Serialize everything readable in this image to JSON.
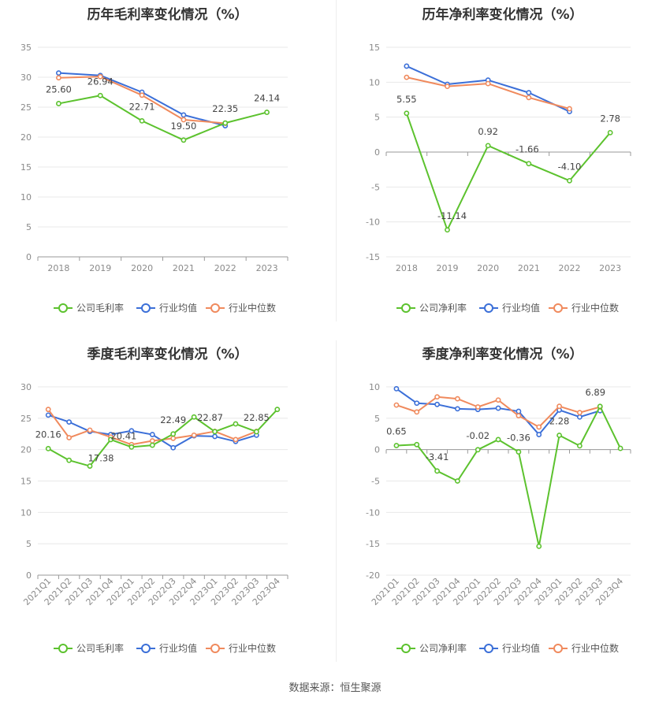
{
  "colors": {
    "company": "#5cc22e",
    "industry_avg": "#3b6fd8",
    "industry_median": "#f08a5d"
  },
  "source_text": "数据来源：恒生聚源",
  "chart_data": [
    {
      "type": "line",
      "title": "历年毛利率变化情况（%）",
      "x": [
        "2018",
        "2019",
        "2020",
        "2021",
        "2022",
        "2023"
      ],
      "ylim": [
        0,
        35
      ],
      "yticks": [
        0,
        5,
        10,
        15,
        20,
        25,
        30,
        35
      ],
      "grid": true,
      "legend_position": "bottom",
      "series": [
        {
          "name": "公司毛利率",
          "color": "#5cc22e",
          "values": [
            25.6,
            26.94,
            22.71,
            19.5,
            22.35,
            24.14
          ],
          "labels": [
            "25.60",
            "26.94",
            "22.71",
            "19.50",
            "22.35",
            "24.14"
          ]
        },
        {
          "name": "行业均值",
          "color": "#3b6fd8",
          "values": [
            30.7,
            30.3,
            27.5,
            23.7,
            21.9,
            null
          ]
        },
        {
          "name": "行业中位数",
          "color": "#f08a5d",
          "values": [
            29.9,
            30.1,
            27.0,
            22.9,
            22.3,
            null
          ]
        }
      ]
    },
    {
      "type": "line",
      "title": "历年净利率变化情况（%）",
      "x": [
        "2018",
        "2019",
        "2020",
        "2021",
        "2022",
        "2023"
      ],
      "ylim": [
        -15,
        15
      ],
      "yticks": [
        -15,
        -10,
        -5,
        0,
        5,
        10,
        15
      ],
      "grid": true,
      "legend_position": "bottom",
      "series": [
        {
          "name": "公司净利率",
          "color": "#5cc22e",
          "values": [
            5.55,
            -11.14,
            0.92,
            -1.66,
            -4.1,
            2.78
          ],
          "labels": [
            "5.55",
            "-11.14",
            "0.92",
            "-1.66",
            "-4.10",
            "2.78"
          ]
        },
        {
          "name": "行业均值",
          "color": "#3b6fd8",
          "values": [
            12.3,
            9.7,
            10.3,
            8.5,
            5.8,
            null
          ]
        },
        {
          "name": "行业中位数",
          "color": "#f08a5d",
          "values": [
            10.7,
            9.4,
            9.8,
            7.8,
            6.2,
            null
          ]
        }
      ]
    },
    {
      "type": "line",
      "title": "季度毛利率变化情况（%）",
      "x": [
        "2021Q1",
        "2021Q2",
        "2021Q3",
        "2021Q4",
        "2022Q1",
        "2022Q2",
        "2022Q3",
        "2022Q4",
        "2023Q1",
        "2023Q2",
        "2023Q3",
        "2023Q4"
      ],
      "ylim": [
        0,
        30
      ],
      "yticks": [
        0,
        5,
        10,
        15,
        20,
        25,
        30
      ],
      "grid": true,
      "legend_position": "bottom",
      "series": [
        {
          "name": "公司毛利率",
          "color": "#5cc22e",
          "values": [
            20.16,
            18.3,
            17.38,
            21.6,
            20.41,
            20.7,
            22.49,
            25.2,
            22.87,
            24.1,
            22.85,
            26.4
          ],
          "labels": [
            "20.16",
            "",
            "17.38",
            "",
            "20.41",
            "",
            "22.49",
            "",
            "22.87",
            "",
            "22.85",
            ""
          ]
        },
        {
          "name": "行业均值",
          "color": "#3b6fd8",
          "values": [
            25.5,
            24.4,
            22.9,
            22.4,
            23.0,
            22.4,
            20.3,
            22.2,
            22.1,
            21.3,
            22.3,
            null
          ]
        },
        {
          "name": "行业中位数",
          "color": "#f08a5d",
          "values": [
            26.4,
            21.9,
            23.1,
            22.0,
            20.8,
            21.4,
            21.8,
            22.3,
            22.9,
            21.6,
            22.9,
            null
          ]
        }
      ]
    },
    {
      "type": "line",
      "title": "季度净利率变化情况（%）",
      "x": [
        "2021Q1",
        "2021Q2",
        "2021Q3",
        "2021Q4",
        "2022Q1",
        "2022Q2",
        "2022Q3",
        "2022Q4",
        "2023Q1",
        "2023Q2",
        "2023Q3",
        "2023Q4"
      ],
      "ylim": [
        -20,
        10
      ],
      "yticks": [
        -20,
        -15,
        -10,
        -5,
        0,
        5,
        10
      ],
      "grid": true,
      "legend_position": "bottom",
      "series": [
        {
          "name": "公司净利率",
          "color": "#5cc22e",
          "values": [
            0.65,
            0.8,
            -3.41,
            -5.0,
            -0.02,
            1.6,
            -0.36,
            -15.4,
            2.28,
            0.6,
            6.89,
            0.2
          ],
          "labels": [
            "0.65",
            "",
            "-3.41",
            "",
            "-0.02",
            "",
            "-0.36",
            "",
            "2.28",
            "",
            "6.89",
            ""
          ]
        },
        {
          "name": "行业均值",
          "color": "#3b6fd8",
          "values": [
            9.7,
            7.4,
            7.2,
            6.5,
            6.4,
            6.6,
            6.1,
            2.4,
            6.3,
            5.2,
            6.2,
            null
          ]
        },
        {
          "name": "行业中位数",
          "color": "#f08a5d",
          "values": [
            7.1,
            6.0,
            8.4,
            8.1,
            6.8,
            7.9,
            5.4,
            3.6,
            6.9,
            5.9,
            6.8,
            null
          ]
        }
      ]
    }
  ]
}
